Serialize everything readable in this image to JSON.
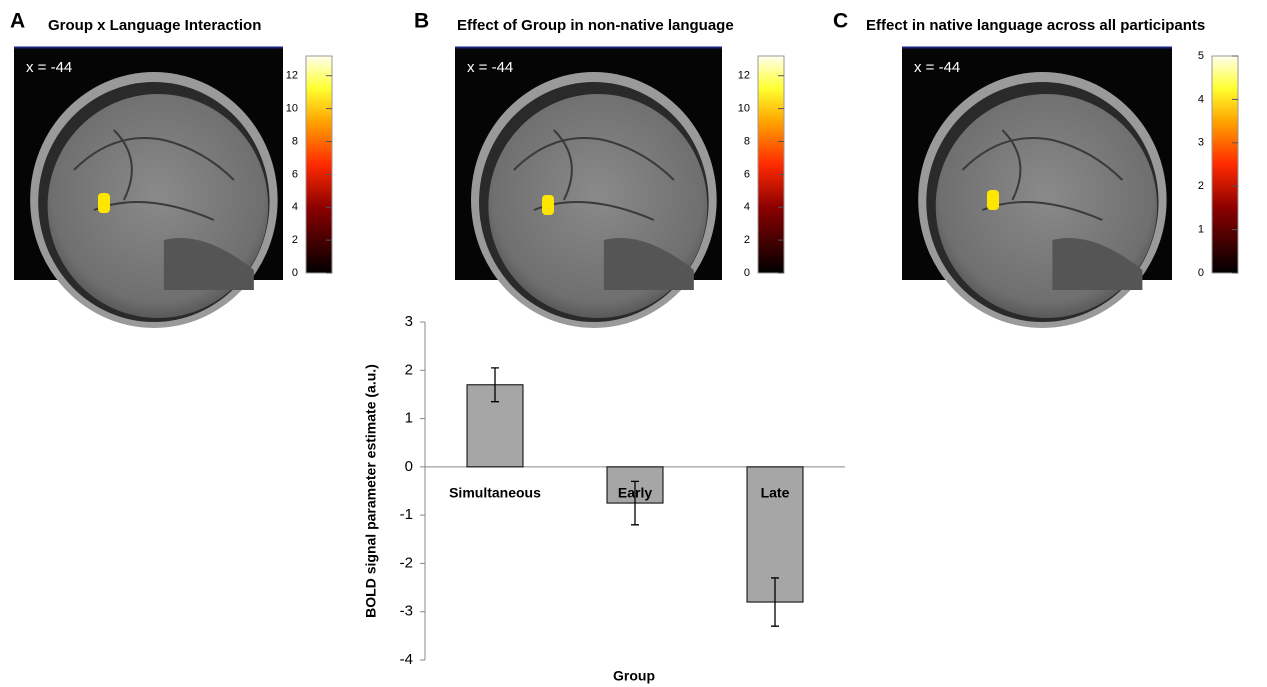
{
  "panels": [
    {
      "letter": "A",
      "title": "Group x Language Interaction",
      "slice": "x = -44",
      "colorbar": {
        "lim": [
          0,
          13.2
        ],
        "ticks": [
          0,
          2,
          4,
          6,
          8,
          10,
          12
        ]
      }
    },
    {
      "letter": "B",
      "title": "Effect of Group in non-native language",
      "slice": "x = -44",
      "colorbar": {
        "lim": [
          0,
          13.2
        ],
        "ticks": [
          0,
          2,
          4,
          6,
          8,
          10,
          12
        ]
      }
    },
    {
      "letter": "C",
      "title": "Effect in native language across all participants",
      "slice": "x = -44",
      "colorbar": {
        "lim": [
          0,
          5
        ],
        "ticks": [
          0,
          1,
          2,
          3,
          4,
          5
        ]
      }
    }
  ],
  "chart_data": {
    "type": "bar",
    "categories": [
      "Simultaneous",
      "Early",
      "Late"
    ],
    "values": [
      1.7,
      -0.75,
      -2.8
    ],
    "errors": [
      0.35,
      0.45,
      0.5
    ],
    "color": "#a6a6a6",
    "ylim": [
      -4,
      3
    ],
    "yticks": [
      -4,
      -3,
      -2,
      -1,
      0,
      1,
      2,
      3
    ],
    "xlabel": "Group",
    "ylabel": "BOLD signal parameter estimate (a.u.)"
  }
}
